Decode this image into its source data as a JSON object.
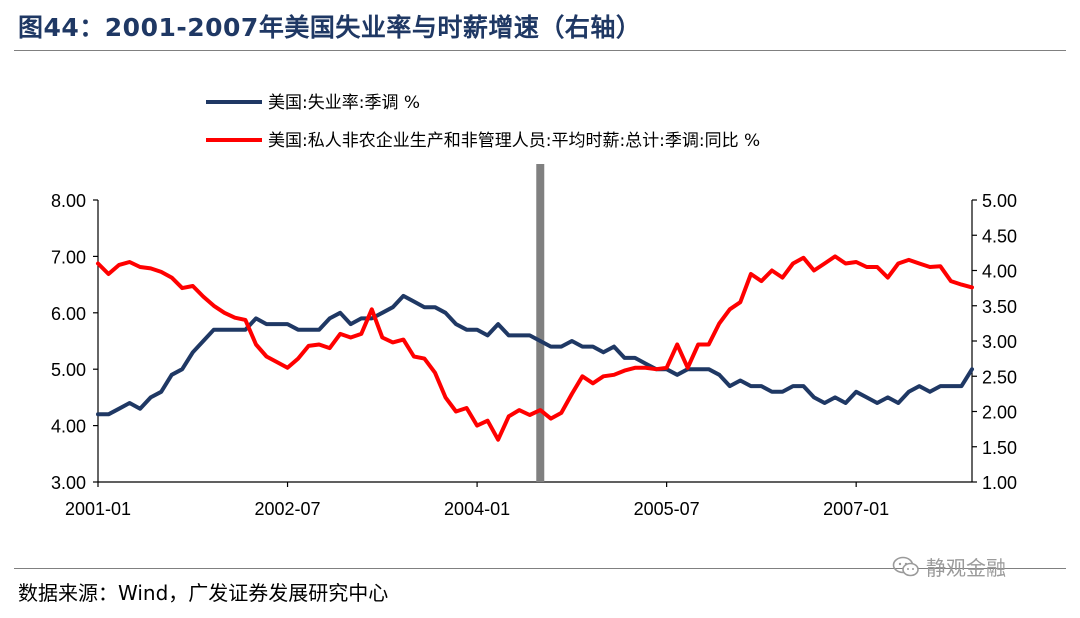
{
  "figure": {
    "title": "图44：2001-2007年美国失业率与时薪增速（右轴）",
    "source": "数据来源：Wind，广发证券发展研究中心",
    "watermark": "静观金融",
    "watermark_icon": "wechat-icon"
  },
  "chart_data": {
    "type": "line",
    "title": "",
    "xlabel": "",
    "ylabel": "",
    "x_tick_labels": [
      "2001-01",
      "2002-07",
      "2004-01",
      "2005-07",
      "2007-01"
    ],
    "x_range": [
      "2001-01",
      "2007-12"
    ],
    "y_left": {
      "range": [
        3.0,
        8.0
      ],
      "ticks": [
        "3.00",
        "4.00",
        "5.00",
        "6.00",
        "7.00",
        "8.00"
      ]
    },
    "y_right": {
      "range": [
        1.0,
        5.0
      ],
      "ticks": [
        "1.00",
        "1.50",
        "2.00",
        "2.50",
        "3.00",
        "3.50",
        "4.00",
        "4.50",
        "5.00"
      ]
    },
    "grid": false,
    "legend_position": "top",
    "vertical_marker": {
      "x": "2004-07",
      "color": "#808080"
    },
    "series": [
      {
        "name": "美国:失业率:季调 %",
        "axis": "left",
        "color": "#1f3864",
        "x": [
          "2001-01",
          "2001-02",
          "2001-03",
          "2001-04",
          "2001-05",
          "2001-06",
          "2001-07",
          "2001-08",
          "2001-09",
          "2001-10",
          "2001-11",
          "2001-12",
          "2002-01",
          "2002-02",
          "2002-03",
          "2002-04",
          "2002-05",
          "2002-06",
          "2002-07",
          "2002-08",
          "2002-09",
          "2002-10",
          "2002-11",
          "2002-12",
          "2003-01",
          "2003-02",
          "2003-03",
          "2003-04",
          "2003-05",
          "2003-06",
          "2003-07",
          "2003-08",
          "2003-09",
          "2003-10",
          "2003-11",
          "2003-12",
          "2004-01",
          "2004-02",
          "2004-03",
          "2004-04",
          "2004-05",
          "2004-06",
          "2004-07",
          "2004-08",
          "2004-09",
          "2004-10",
          "2004-11",
          "2004-12",
          "2005-01",
          "2005-02",
          "2005-03",
          "2005-04",
          "2005-05",
          "2005-06",
          "2005-07",
          "2005-08",
          "2005-09",
          "2005-10",
          "2005-11",
          "2005-12",
          "2006-01",
          "2006-02",
          "2006-03",
          "2006-04",
          "2006-05",
          "2006-06",
          "2006-07",
          "2006-08",
          "2006-09",
          "2006-10",
          "2006-11",
          "2006-12",
          "2007-01",
          "2007-02",
          "2007-03",
          "2007-04",
          "2007-05",
          "2007-06",
          "2007-07",
          "2007-08",
          "2007-09",
          "2007-10",
          "2007-11",
          "2007-12"
        ],
        "values": [
          4.2,
          4.2,
          4.3,
          4.4,
          4.3,
          4.5,
          4.6,
          4.9,
          5.0,
          5.3,
          5.5,
          5.7,
          5.7,
          5.7,
          5.7,
          5.9,
          5.8,
          5.8,
          5.8,
          5.7,
          5.7,
          5.7,
          5.9,
          6.0,
          5.8,
          5.9,
          5.9,
          6.0,
          6.1,
          6.3,
          6.2,
          6.1,
          6.1,
          6.0,
          5.8,
          5.7,
          5.7,
          5.6,
          5.8,
          5.6,
          5.6,
          5.6,
          5.5,
          5.4,
          5.4,
          5.5,
          5.4,
          5.4,
          5.3,
          5.4,
          5.2,
          5.2,
          5.1,
          5.0,
          5.0,
          4.9,
          5.0,
          5.0,
          5.0,
          4.9,
          4.7,
          4.8,
          4.7,
          4.7,
          4.6,
          4.6,
          4.7,
          4.7,
          4.5,
          4.4,
          4.5,
          4.4,
          4.6,
          4.5,
          4.4,
          4.5,
          4.4,
          4.6,
          4.7,
          4.6,
          4.7,
          4.7,
          4.7,
          5.0
        ]
      },
      {
        "name": "美国:私人非农企业生产和非管理人员:平均时薪:总计:季调:同比 %",
        "axis": "right",
        "color": "#ff0000",
        "x": [
          "2001-01",
          "2001-02",
          "2001-03",
          "2001-04",
          "2001-05",
          "2001-06",
          "2001-07",
          "2001-08",
          "2001-09",
          "2001-10",
          "2001-11",
          "2001-12",
          "2002-01",
          "2002-02",
          "2002-03",
          "2002-04",
          "2002-05",
          "2002-06",
          "2002-07",
          "2002-08",
          "2002-09",
          "2002-10",
          "2002-11",
          "2002-12",
          "2003-01",
          "2003-02",
          "2003-03",
          "2003-04",
          "2003-05",
          "2003-06",
          "2003-07",
          "2003-08",
          "2003-09",
          "2003-10",
          "2003-11",
          "2003-12",
          "2004-01",
          "2004-02",
          "2004-03",
          "2004-04",
          "2004-05",
          "2004-06",
          "2004-07",
          "2004-08",
          "2004-09",
          "2004-10",
          "2004-11",
          "2004-12",
          "2005-01",
          "2005-02",
          "2005-03",
          "2005-04",
          "2005-05",
          "2005-06",
          "2005-07",
          "2005-08",
          "2005-09",
          "2005-10",
          "2005-11",
          "2005-12",
          "2006-01",
          "2006-02",
          "2006-03",
          "2006-04",
          "2006-05",
          "2006-06",
          "2006-07",
          "2006-08",
          "2006-09",
          "2006-10",
          "2006-11",
          "2006-12",
          "2007-01",
          "2007-02",
          "2007-03",
          "2007-04",
          "2007-05",
          "2007-06",
          "2007-07",
          "2007-08",
          "2007-09",
          "2007-10",
          "2007-11",
          "2007-12"
        ],
        "values": [
          4.1,
          3.95,
          4.08,
          4.12,
          4.05,
          4.03,
          3.98,
          3.9,
          3.75,
          3.78,
          3.63,
          3.5,
          3.4,
          3.33,
          3.3,
          2.95,
          2.78,
          2.7,
          2.62,
          2.75,
          2.93,
          2.95,
          2.9,
          3.1,
          3.05,
          3.1,
          3.45,
          3.05,
          2.98,
          3.02,
          2.78,
          2.75,
          2.55,
          2.2,
          2.0,
          2.05,
          1.8,
          1.87,
          1.6,
          1.93,
          2.02,
          1.95,
          2.02,
          1.9,
          1.98,
          2.25,
          2.5,
          2.4,
          2.5,
          2.52,
          2.58,
          2.62,
          2.62,
          2.6,
          2.62,
          2.95,
          2.62,
          2.95,
          2.95,
          3.25,
          3.45,
          3.55,
          3.95,
          3.85,
          4.0,
          3.9,
          4.1,
          4.18,
          4.0,
          4.1,
          4.2,
          4.1,
          4.12,
          4.05,
          4.05,
          3.9,
          4.1,
          4.15,
          4.1,
          4.05,
          4.06,
          3.85,
          3.8,
          3.76
        ]
      }
    ]
  }
}
